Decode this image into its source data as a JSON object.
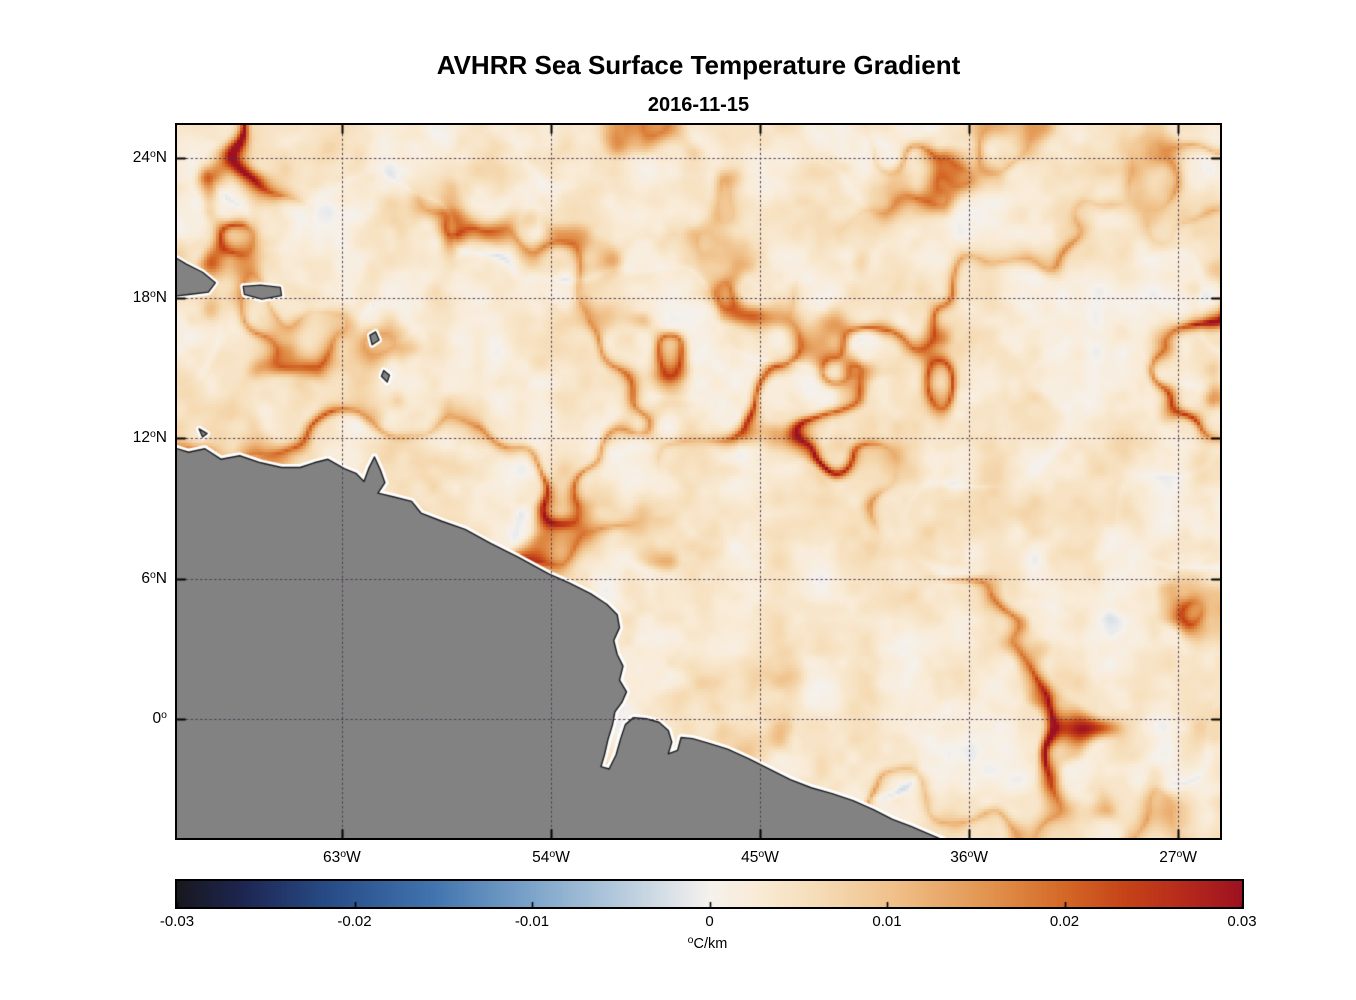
{
  "chart_data": {
    "type": "heatmap",
    "title": "AVHRR Sea Surface Temperature Gradient",
    "subtitle": "2016-11-15",
    "field_name": "sea surface temperature gradient magnitude",
    "units": "°C/km",
    "value_range": [
      -0.03,
      0.03
    ],
    "lon_range": [
      -70.1,
      -25.2
    ],
    "lat_range": [
      -5.1,
      25.4
    ],
    "grid": {
      "style": "dotted",
      "color": "#4b3a55"
    },
    "frame_color": "#000000",
    "xticks": [
      {
        "value": -63,
        "num": "63",
        "deg": "o",
        "suffix": "W"
      },
      {
        "value": -54,
        "num": "54",
        "deg": "o",
        "suffix": "W"
      },
      {
        "value": -45,
        "num": "45",
        "deg": "o",
        "suffix": "W"
      },
      {
        "value": -36,
        "num": "36",
        "deg": "o",
        "suffix": "W"
      },
      {
        "value": -27,
        "num": "27",
        "deg": "o",
        "suffix": "W"
      }
    ],
    "yticks": [
      {
        "value": 24,
        "num": "24",
        "deg": "o",
        "suffix": "N"
      },
      {
        "value": 18,
        "num": "18",
        "deg": "o",
        "suffix": "N"
      },
      {
        "value": 12,
        "num": "12",
        "deg": "o",
        "suffix": "N"
      },
      {
        "value": 6,
        "num": "6",
        "deg": "o",
        "suffix": "N"
      },
      {
        "value": 0,
        "num": "0",
        "deg": "o",
        "suffix": ""
      }
    ],
    "colorbar": {
      "orientation": "horizontal",
      "ticks": [
        {
          "value": -0.03,
          "label": "-0.03"
        },
        {
          "value": -0.02,
          "label": "-0.02"
        },
        {
          "value": -0.01,
          "label": "-0.01"
        },
        {
          "value": 0,
          "label": "0"
        },
        {
          "value": 0.01,
          "label": "0.01"
        },
        {
          "value": 0.02,
          "label": "0.02"
        },
        {
          "value": 0.03,
          "label": "0.03"
        }
      ],
      "unit_sup": "o",
      "unit_text": "C/km"
    },
    "colormap": [
      [
        0.0,
        "#18181f"
      ],
      [
        0.06,
        "#1d2550"
      ],
      [
        0.14,
        "#274b86"
      ],
      [
        0.24,
        "#4174ae"
      ],
      [
        0.33,
        "#7ba3c9"
      ],
      [
        0.42,
        "#b8cdde"
      ],
      [
        0.48,
        "#e6e9ec"
      ],
      [
        0.5,
        "#f5f1ec"
      ],
      [
        0.54,
        "#f9ecd9"
      ],
      [
        0.6,
        "#f6ddb8"
      ],
      [
        0.68,
        "#efbe85"
      ],
      [
        0.76,
        "#e29550"
      ],
      [
        0.83,
        "#d56a28"
      ],
      [
        0.89,
        "#c64418"
      ],
      [
        0.95,
        "#b5281b"
      ],
      [
        1.0,
        "#9c1220"
      ]
    ],
    "land": {
      "fill": "#828282",
      "outline": "#1c1c1c",
      "halo": "#ffffff"
    },
    "coastlines": {
      "mainland_coast": [
        [
          -70.4,
          11.65
        ],
        [
          -69.6,
          11.4
        ],
        [
          -68.9,
          11.55
        ],
        [
          -68.2,
          11.1
        ],
        [
          -67.4,
          11.25
        ],
        [
          -66.5,
          10.95
        ],
        [
          -65.6,
          10.75
        ],
        [
          -64.8,
          10.75
        ],
        [
          -64.2,
          10.95
        ],
        [
          -63.6,
          11.1
        ],
        [
          -62.9,
          10.7
        ],
        [
          -62.4,
          10.5
        ],
        [
          -62.05,
          10.15
        ],
        [
          -61.85,
          10.7
        ],
        [
          -61.6,
          11.2
        ],
        [
          -61.35,
          10.65
        ],
        [
          -61.15,
          10.1
        ],
        [
          -61.45,
          9.65
        ],
        [
          -60.8,
          9.5
        ],
        [
          -60.0,
          9.3
        ],
        [
          -59.6,
          8.8
        ],
        [
          -58.7,
          8.45
        ],
        [
          -57.7,
          8.1
        ],
        [
          -56.6,
          7.5
        ],
        [
          -55.4,
          6.9
        ],
        [
          -54.1,
          6.2
        ],
        [
          -53.2,
          5.8
        ],
        [
          -52.3,
          5.35
        ],
        [
          -51.6,
          4.9
        ],
        [
          -51.15,
          4.45
        ],
        [
          -51.05,
          3.9
        ],
        [
          -51.3,
          3.35
        ],
        [
          -51.15,
          2.75
        ],
        [
          -50.9,
          2.25
        ],
        [
          -51.05,
          1.65
        ],
        [
          -50.75,
          1.15
        ],
        [
          -50.95,
          0.7
        ],
        [
          -51.25,
          0.3
        ],
        [
          -51.35,
          -0.25
        ],
        [
          -51.55,
          -0.9
        ],
        [
          -51.7,
          -1.55
        ],
        [
          -51.85,
          -2.05
        ],
        [
          -51.5,
          -2.15
        ],
        [
          -51.2,
          -1.55
        ],
        [
          -51.0,
          -0.85
        ],
        [
          -50.8,
          -0.25
        ],
        [
          -50.45,
          0.05
        ],
        [
          -49.9,
          0.0
        ],
        [
          -49.35,
          -0.15
        ],
        [
          -48.95,
          -0.5
        ],
        [
          -48.8,
          -1.0
        ],
        [
          -48.95,
          -1.5
        ],
        [
          -48.55,
          -1.35
        ],
        [
          -48.4,
          -0.8
        ],
        [
          -47.9,
          -0.85
        ],
        [
          -47.2,
          -1.05
        ],
        [
          -46.4,
          -1.3
        ],
        [
          -45.5,
          -1.7
        ],
        [
          -44.6,
          -2.15
        ],
        [
          -43.7,
          -2.6
        ],
        [
          -42.8,
          -2.95
        ],
        [
          -41.9,
          -3.2
        ],
        [
          -41.0,
          -3.5
        ],
        [
          -40.1,
          -3.9
        ],
        [
          -39.3,
          -4.3
        ],
        [
          -38.5,
          -4.6
        ],
        [
          -37.8,
          -4.9
        ],
        [
          -37.1,
          -5.2
        ]
      ],
      "mainland_closure": [
        [
          -36.9,
          -5.6
        ],
        [
          -70.5,
          -5.6
        ]
      ],
      "islands": [
        [
          [
            -70.45,
            19.9
          ],
          [
            -69.7,
            19.45
          ],
          [
            -69.0,
            19.1
          ],
          [
            -68.45,
            18.65
          ],
          [
            -68.75,
            18.25
          ],
          [
            -69.6,
            18.15
          ],
          [
            -70.45,
            18.05
          ]
        ],
        [
          [
            -67.25,
            18.5
          ],
          [
            -66.5,
            18.55
          ],
          [
            -65.65,
            18.45
          ],
          [
            -65.6,
            18.1
          ],
          [
            -66.45,
            17.95
          ],
          [
            -67.2,
            18.15
          ]
        ],
        [
          [
            -61.8,
            16.4
          ],
          [
            -61.55,
            16.55
          ],
          [
            -61.4,
            16.2
          ],
          [
            -61.7,
            16.0
          ]
        ],
        [
          [
            -61.2,
            14.9
          ],
          [
            -60.95,
            14.7
          ],
          [
            -61.05,
            14.4
          ],
          [
            -61.3,
            14.65
          ]
        ],
        [
          [
            -69.15,
            12.4
          ],
          [
            -68.8,
            12.2
          ],
          [
            -69.0,
            12.05
          ]
        ]
      ]
    },
    "field": {
      "base_bias": 0.0035,
      "base_amp": 0.005,
      "filament_amp": 0.027,
      "neg_filament_amp": 0.005,
      "hotspots": [
        [
          -69.2,
          24.9,
          2.0,
          1.1
        ],
        [
          -66.3,
          23.6,
          1.4,
          0.8
        ],
        [
          -58.2,
          21.5,
          1.3,
          0.5
        ],
        [
          -50.3,
          21.2,
          1.3,
          0.5
        ],
        [
          -45.2,
          18.2,
          1.3,
          0.55
        ],
        [
          -25.5,
          17.3,
          1.3,
          1.0
        ],
        [
          -25.6,
          14.1,
          1.2,
          0.9
        ],
        [
          -45.0,
          11.8,
          1.0,
          0.9
        ],
        [
          -41.5,
          9.7,
          1.5,
          0.6
        ],
        [
          -55.4,
          7.4,
          1.6,
          1.0
        ],
        [
          -48.2,
          5.2,
          1.9,
          0.7
        ],
        [
          -46.3,
          3.3,
          1.6,
          0.75
        ],
        [
          -36.8,
          4.9,
          1.5,
          0.55
        ],
        [
          -30.4,
          2.6,
          1.6,
          0.6
        ],
        [
          -43.9,
          -1.4,
          1.5,
          0.65
        ],
        [
          -33.0,
          -0.3,
          1.8,
          0.5
        ]
      ]
    }
  }
}
